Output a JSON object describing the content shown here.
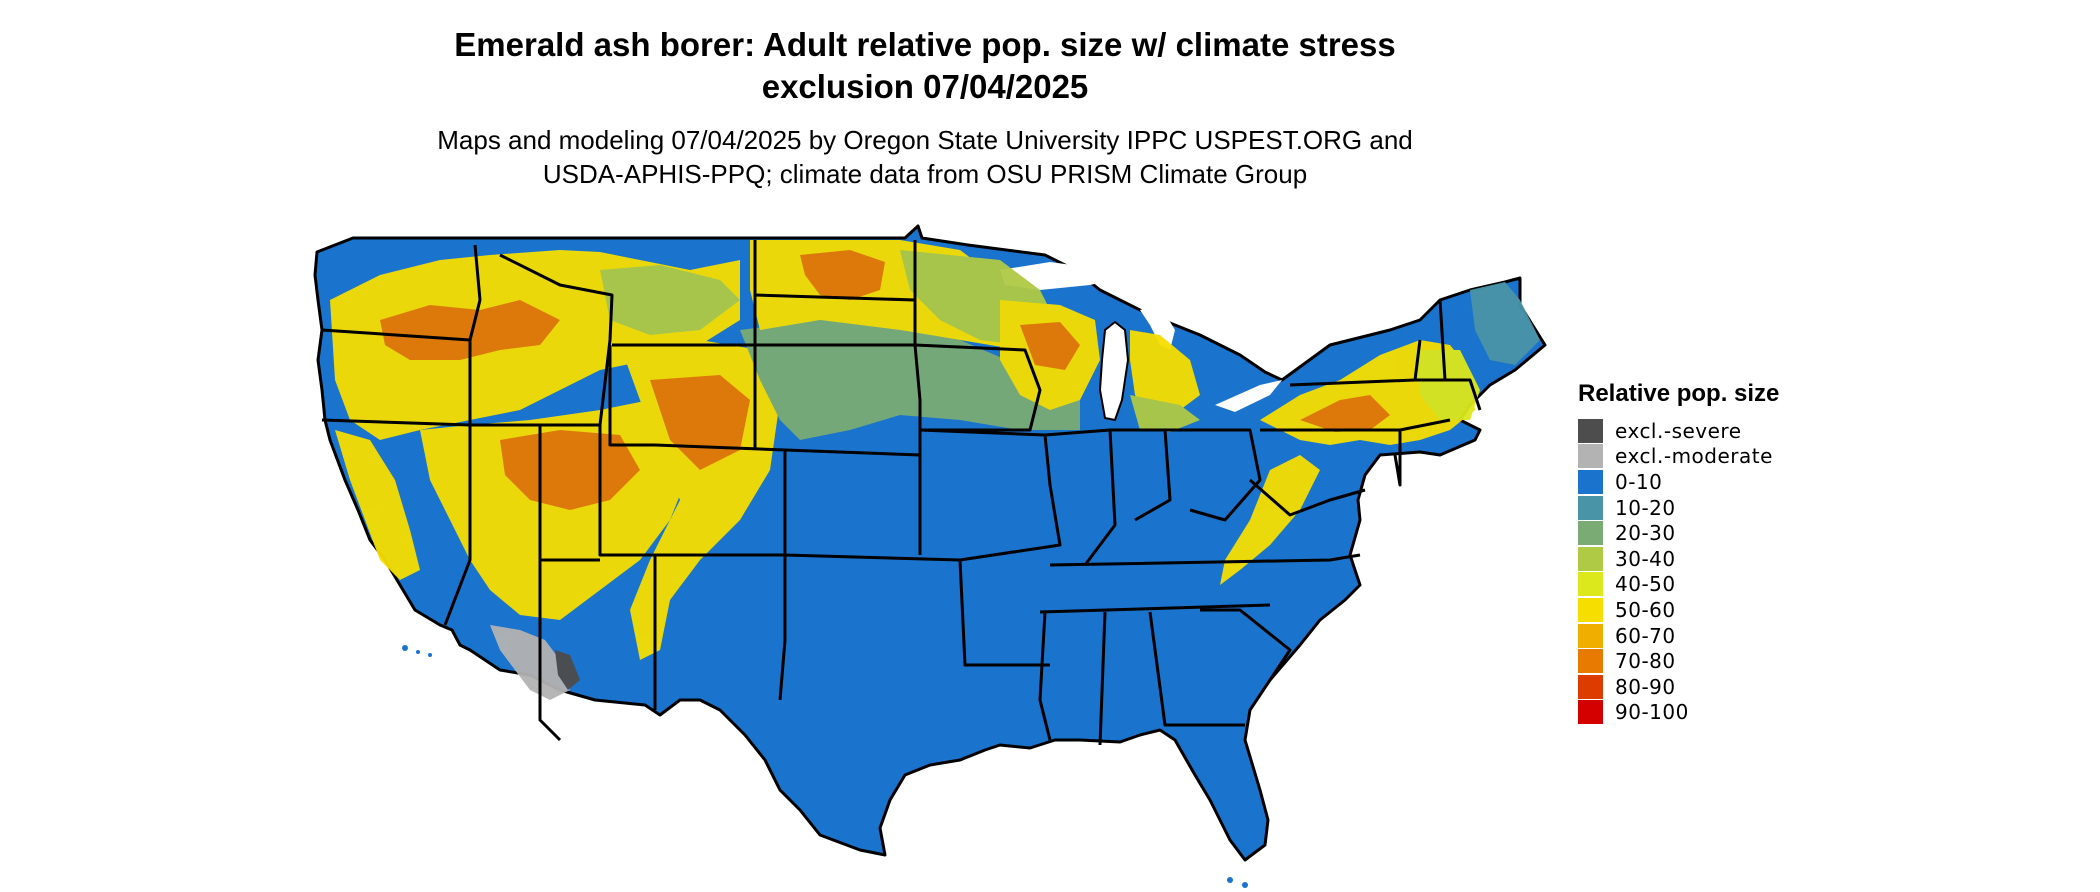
{
  "title": "Emerald ash borer: Adult relative pop. size w/ climate stress exclusion 07/04/2025",
  "title_line1": "Emerald ash borer: Adult relative pop. size w/ climate stress",
  "title_line2": "exclusion 07/04/2025",
  "subtitle_line1": "Maps and modeling 07/04/2025 by Oregon State University IPPC USPEST.ORG and",
  "subtitle_line2": "USDA-APHIS-PPQ; climate data from OSU PRISM Climate Group",
  "legend": {
    "title": "Relative pop. size",
    "items": [
      {
        "label": "excl.-severe",
        "color": "#4d4d4d"
      },
      {
        "label": "excl.-moderate",
        "color": "#b3b3b3"
      },
      {
        "label": "0-10",
        "color": "#1a73cc"
      },
      {
        "label": "10-20",
        "color": "#4a94a8"
      },
      {
        "label": "20-30",
        "color": "#7aab75"
      },
      {
        "label": "30-40",
        "color": "#afca45"
      },
      {
        "label": "40-50",
        "color": "#dce71c"
      },
      {
        "label": "50-60",
        "color": "#f6de00"
      },
      {
        "label": "60-70",
        "color": "#efae00"
      },
      {
        "label": "70-80",
        "color": "#e77a00"
      },
      {
        "label": "80-90",
        "color": "#dc3c00"
      },
      {
        "label": "90-100",
        "color": "#d40000"
      }
    ]
  },
  "map": {
    "base_color": "#1a73cc",
    "border_color": "#000000",
    "lake_color": "#ffffff"
  }
}
